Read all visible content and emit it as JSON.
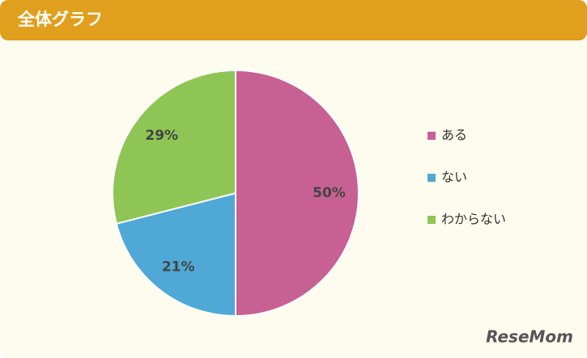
{
  "chart_data": {
    "type": "pie",
    "title": "全体グラフ",
    "categories": [
      "ある",
      "ない",
      "わからない"
    ],
    "values": [
      50,
      21,
      29
    ],
    "value_labels": [
      "50%",
      "21%",
      "29%"
    ],
    "colors": [
      "#c86193",
      "#4fa8d5",
      "#8fc555"
    ],
    "legend": "right",
    "watermark": "ReseMom"
  }
}
